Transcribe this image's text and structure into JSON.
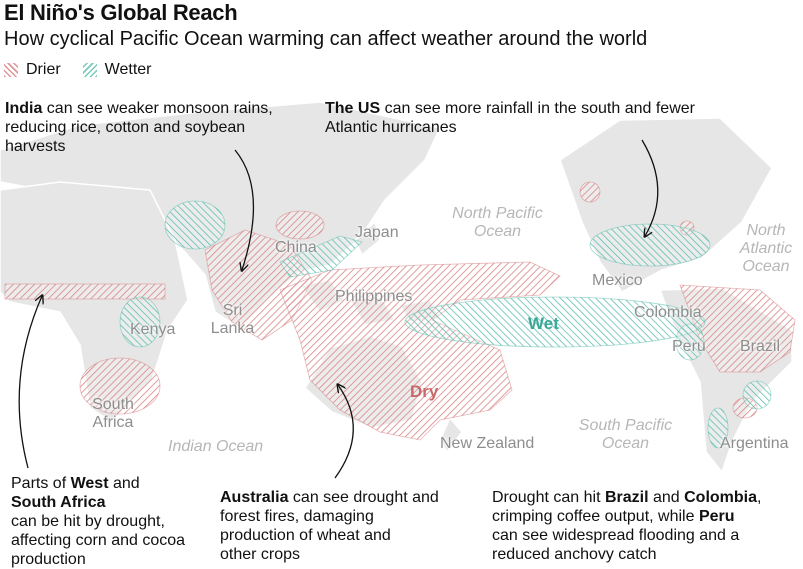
{
  "header": {
    "title": "El Niño's Global Reach",
    "subtitle": "How cyclical Pacific Ocean warming can affect weather around the world"
  },
  "legend": {
    "items": [
      {
        "label": "Drier",
        "color": "#d98486"
      },
      {
        "label": "Wetter",
        "color": "#5fbfae"
      }
    ]
  },
  "annotations": [
    {
      "lines": [
        [
          {
            "text": "India",
            "bold": true
          },
          {
            "text": " can see weaker monsoon rains,",
            "bold": false
          }
        ],
        [
          {
            "text": "reducing rice, cotton and soybean",
            "bold": false
          }
        ],
        [
          {
            "text": "harvests",
            "bold": false
          }
        ]
      ]
    },
    {
      "lines": [
        [
          {
            "text": "The US",
            "bold": true
          },
          {
            "text": " can see more rainfall in the south and fewer",
            "bold": false
          }
        ],
        [
          {
            "text": "Atlantic hurricanes",
            "bold": false
          }
        ]
      ]
    },
    {
      "lines": [
        [
          {
            "text": "Parts of ",
            "bold": false
          },
          {
            "text": "West",
            "bold": true
          },
          {
            "text": " and",
            "bold": false
          }
        ],
        [
          {
            "text": "South Africa",
            "bold": true
          }
        ],
        [
          {
            "text": "can be hit by drought,",
            "bold": false
          }
        ],
        [
          {
            "text": "affecting corn and cocoa",
            "bold": false
          }
        ],
        [
          {
            "text": "production",
            "bold": false
          }
        ]
      ]
    },
    {
      "lines": [
        [
          {
            "text": "Australia",
            "bold": true
          },
          {
            "text": " can see drought and",
            "bold": false
          }
        ],
        [
          {
            "text": "forest fires, damaging",
            "bold": false
          }
        ],
        [
          {
            "text": "production of wheat and",
            "bold": false
          }
        ],
        [
          {
            "text": "other crops",
            "bold": false
          }
        ]
      ]
    },
    {
      "lines": [
        [
          {
            "text": "Drought can hit ",
            "bold": false
          },
          {
            "text": "Brazil",
            "bold": true
          },
          {
            "text": " and ",
            "bold": false
          },
          {
            "text": "Colombia",
            "bold": true
          },
          {
            "text": ",",
            "bold": false
          }
        ],
        [
          {
            "text": "crimping coffee output, while ",
            "bold": false
          },
          {
            "text": "Peru",
            "bold": true
          }
        ],
        [
          {
            "text": "can see widespread flooding and a",
            "bold": false
          }
        ],
        [
          {
            "text": "reduced anchovy catch",
            "bold": false
          }
        ]
      ]
    }
  ],
  "places": {
    "china": "China",
    "japan": "Japan",
    "philippines": "Philippines",
    "sri_lanka": "Sri Lanka",
    "kenya": "Kenya",
    "south_africa": "South Africa",
    "mexico": "Mexico",
    "colombia": "Colombia",
    "peru": "Peru",
    "brazil": "Brazil",
    "argentina": "Argentina",
    "new_zealand": "New Zealand"
  },
  "oceans": {
    "north_pacific": "North Pacific Ocean",
    "north_atlantic": "North Atlantic Ocean",
    "south_pacific": "South Pacific Ocean",
    "indian": "Indian Ocean"
  },
  "regions": {
    "wet": "Wet",
    "dry": "Dry"
  }
}
